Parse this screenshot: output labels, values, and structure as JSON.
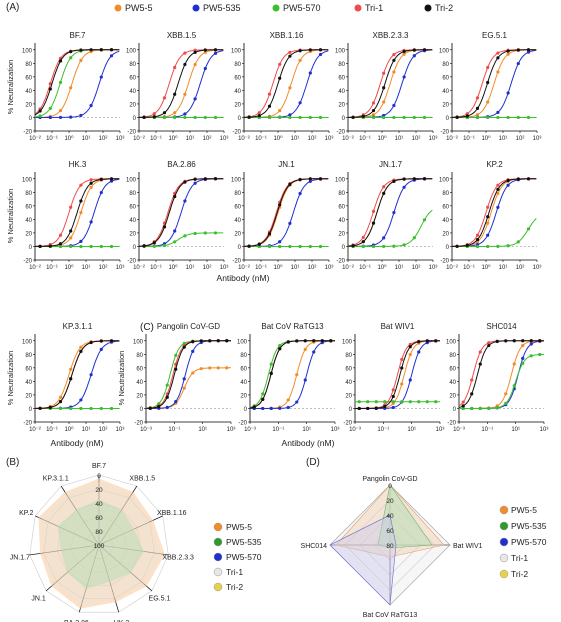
{
  "figure": {
    "panel_labels": [
      "(A)",
      "(B)",
      "(C)",
      "(D)"
    ],
    "axes_common": {
      "ylabel": "% Neutralization",
      "xlabel": "Antibody (nM)",
      "yticks": [
        "-20",
        "0",
        "20",
        "40",
        "60",
        "80",
        "100"
      ],
      "xticks_a": [
        "10⁻²",
        "10⁻¹",
        "10⁰",
        "10¹",
        "10²",
        "10³"
      ],
      "xticks_c": [
        "10⁻³",
        "10⁻¹",
        "10¹",
        "10³"
      ]
    },
    "top_legend": [
      {
        "name": "PW5-5",
        "color": "#f28c28"
      },
      {
        "name": "PW5-535",
        "color": "#1f2fd0"
      },
      {
        "name": "PW5-570",
        "color": "#3bbf2c"
      },
      {
        "name": "Tri-1",
        "color": "#f04a4a"
      },
      {
        "name": "Tri-2",
        "color": "#111111"
      }
    ],
    "radar_legend_b": [
      {
        "name": "PW5-5",
        "color": "#f28c28"
      },
      {
        "name": "PW5-535",
        "color": "#2e9a2e"
      },
      {
        "name": "PW5-570",
        "color": "#1f2fd0"
      },
      {
        "name": "Tri-1",
        "color": "#e6e6e6"
      },
      {
        "name": "Tri-2",
        "color": "#e6d24a"
      }
    ],
    "radar_legend_d": [
      {
        "name": "PW5-5",
        "color": "#f28c28"
      },
      {
        "name": "PW5-535",
        "color": "#2e9a2e"
      },
      {
        "name": "PW5-570",
        "color": "#1f2fd0"
      },
      {
        "name": "Tri-1",
        "color": "#e6e6e6"
      },
      {
        "name": "Tri-2",
        "color": "#e6d24a"
      }
    ]
  },
  "chart_data": [
    {
      "type": "line",
      "panel": "A",
      "title": "BF.7",
      "series": [
        {
          "name": "PW5-5",
          "ic50": 1.5
        },
        {
          "name": "PW5-535",
          "ic50": 60
        },
        {
          "name": "PW5-570",
          "ic50": 0.3
        },
        {
          "name": "Tri-1",
          "ic50": 0.08
        },
        {
          "name": "Tri-2",
          "ic50": 0.1
        }
      ]
    },
    {
      "type": "line",
      "panel": "A",
      "title": "XBB.1.5",
      "series": [
        {
          "name": "PW5-5",
          "ic50": 8
        },
        {
          "name": "PW5-535",
          "ic50": 40
        },
        {
          "name": "PW5-570",
          "flat": 0
        },
        {
          "name": "Tri-1",
          "ic50": 0.6
        },
        {
          "name": "Tri-2",
          "ic50": 2
        }
      ]
    },
    {
      "type": "line",
      "panel": "A",
      "title": "XBB.1.16",
      "series": [
        {
          "name": "PW5-5",
          "ic50": 6
        },
        {
          "name": "PW5-535",
          "ic50": 50
        },
        {
          "name": "PW5-570",
          "flat": 0
        },
        {
          "name": "Tri-1",
          "ic50": 0.5
        },
        {
          "name": "Tri-2",
          "ic50": 1
        }
      ]
    },
    {
      "type": "line",
      "panel": "A",
      "title": "XBB.2.3.3",
      "series": [
        {
          "name": "PW5-5",
          "ic50": 3
        },
        {
          "name": "PW5-535",
          "ic50": 15
        },
        {
          "name": "PW5-570",
          "flat": 0
        },
        {
          "name": "Tri-1",
          "ic50": 0.8
        },
        {
          "name": "Tri-2",
          "ic50": 1.5
        }
      ]
    },
    {
      "type": "line",
      "panel": "A",
      "title": "EG.5.1",
      "series": [
        {
          "name": "PW5-5",
          "ic50": 3
        },
        {
          "name": "PW5-535",
          "ic50": 30
        },
        {
          "name": "PW5-570",
          "flat": 0
        },
        {
          "name": "Tri-1",
          "ic50": 0.6
        },
        {
          "name": "Tri-2",
          "ic50": 1.2
        }
      ]
    },
    {
      "type": "line",
      "panel": "A",
      "title": "HK.3",
      "series": [
        {
          "name": "PW5-5",
          "ic50": 5
        },
        {
          "name": "PW5-535",
          "ic50": 30
        },
        {
          "name": "PW5-570",
          "flat": 0
        },
        {
          "name": "Tri-1",
          "ic50": 1
        },
        {
          "name": "Tri-2",
          "ic50": 3
        }
      ]
    },
    {
      "type": "line",
      "panel": "A",
      "title": "BA.2.86",
      "series": [
        {
          "name": "PW5-5",
          "ic50": 0.6
        },
        {
          "name": "PW5-535",
          "ic50": 3
        },
        {
          "name": "PW5-570",
          "ic50": 2,
          "top": 20
        },
        {
          "name": "Tri-1",
          "ic50": 0.5
        },
        {
          "name": "Tri-2",
          "ic50": 0.6
        }
      ]
    },
    {
      "type": "line",
      "panel": "A",
      "title": "JN.1",
      "series": [
        {
          "name": "PW5-5",
          "ic50": 1
        },
        {
          "name": "PW5-535",
          "ic50": 8
        },
        {
          "name": "PW5-570",
          "flat": 0
        },
        {
          "name": "Tri-1",
          "ic50": 0.8
        },
        {
          "name": "Tri-2",
          "ic50": 0.9
        }
      ]
    },
    {
      "type": "line",
      "panel": "A",
      "title": "JN.1.7",
      "series": [
        {
          "name": "PW5-5",
          "ic50": 0.5
        },
        {
          "name": "PW5-535",
          "ic50": 5
        },
        {
          "name": "PW5-570",
          "ic50": 200,
          "top": 60
        },
        {
          "name": "Tri-1",
          "ic50": 0.3
        },
        {
          "name": "Tri-2",
          "ic50": 0.5
        }
      ]
    },
    {
      "type": "line",
      "panel": "A",
      "title": "KP.2",
      "series": [
        {
          "name": "PW5-5",
          "ic50": 2
        },
        {
          "name": "PW5-535",
          "ic50": 4
        },
        {
          "name": "PW5-570",
          "ic50": 300,
          "top": 50
        },
        {
          "name": "Tri-1",
          "ic50": 1
        },
        {
          "name": "Tri-2",
          "ic50": 1.5
        }
      ]
    },
    {
      "type": "line",
      "panel": "A",
      "title": "KP.3.1.1",
      "series": [
        {
          "name": "PW5-5",
          "ic50": 1
        },
        {
          "name": "PW5-535",
          "ic50": 20
        },
        {
          "name": "PW5-570",
          "flat": 0
        },
        {
          "name": "Tri-1",
          "ic50": 1.5
        },
        {
          "name": "Tri-2",
          "ic50": 1.5
        }
      ]
    },
    {
      "type": "line",
      "panel": "C",
      "title": "Pangolin CoV-GD",
      "series": [
        {
          "name": "PW5-5",
          "ic50": 0.5,
          "top": 60
        },
        {
          "name": "PW5-535",
          "ic50": 0.6
        },
        {
          "name": "PW5-570",
          "ic50": 0.05
        },
        {
          "name": "Tri-1",
          "ic50": 0.08
        },
        {
          "name": "Tri-2",
          "ic50": 0.1
        }
      ]
    },
    {
      "type": "line",
      "panel": "C",
      "title": "Bat CoV RaTG13",
      "series": [
        {
          "name": "PW5-5",
          "ic50": 2
        },
        {
          "name": "PW5-535",
          "ic50": 10
        },
        {
          "name": "PW5-570",
          "ic50": 0.02
        },
        {
          "name": "Tri-1",
          "ic50": 0.03
        },
        {
          "name": "Tri-2",
          "ic50": 0.03
        }
      ]
    },
    {
      "type": "line",
      "panel": "C",
      "title": "Bat WIV1",
      "series": [
        {
          "name": "PW5-5",
          "ic50": 3
        },
        {
          "name": "PW5-535",
          "ic50": 10
        },
        {
          "name": "PW5-570",
          "flat": 10
        },
        {
          "name": "Tri-1",
          "ic50": 1
        },
        {
          "name": "Tri-2",
          "ic50": 1.5
        }
      ]
    },
    {
      "type": "line",
      "panel": "C",
      "title": "SHC014",
      "series": [
        {
          "name": "PW5-5",
          "ic50": 5
        },
        {
          "name": "PW5-535",
          "ic50": 15
        },
        {
          "name": "PW5-570",
          "ic50": 10,
          "top": 80
        },
        {
          "name": "Tri-1",
          "ic50": 0.01
        },
        {
          "name": "Tri-2",
          "ic50": 0.02
        }
      ]
    },
    {
      "type": "radar",
      "panel": "B",
      "axes": [
        "BF.7",
        "XBB.1.5",
        "XBB.1.16",
        "XBB.2.3.3",
        "EG.5.1",
        "HK.3",
        "BA.2.86",
        "JN.1",
        "JN.1.7",
        "KP.2",
        "KP.3.1.1"
      ],
      "rlabels": [
        "0",
        "20",
        "40",
        "60",
        "80",
        "100"
      ]
    },
    {
      "type": "radar",
      "panel": "D",
      "axes": [
        "Pangolin CoV-GD",
        "Bat WIV1",
        "Bat CoV RaTG13",
        "SHC014"
      ],
      "rlabels": [
        "0",
        "20",
        "40",
        "60",
        "80"
      ]
    }
  ]
}
